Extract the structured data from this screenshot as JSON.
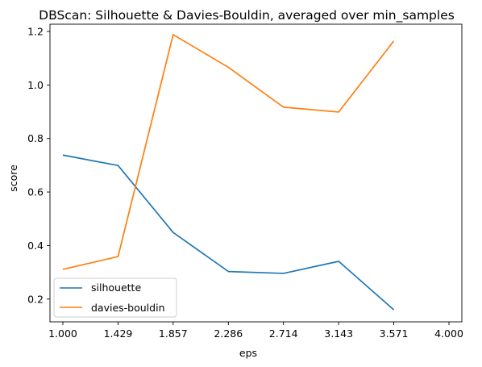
{
  "chart_data": {
    "type": "line",
    "title": "DBScan: Silhouette & Davies-Bouldin, averaged over min_samples",
    "xlabel": "eps",
    "ylabel": "score",
    "x": [
      1.0,
      1.429,
      1.857,
      2.286,
      2.714,
      3.143,
      3.571
    ],
    "xticks": [
      1.0,
      1.429,
      1.857,
      2.286,
      2.714,
      3.143,
      3.571,
      4.0
    ],
    "xtick_labels": [
      "1.000",
      "1.429",
      "1.857",
      "2.286",
      "2.714",
      "3.143",
      "3.571",
      "4.000"
    ],
    "yticks": [
      0.2,
      0.4,
      0.6,
      0.8,
      1.0,
      1.2
    ],
    "ytick_labels": [
      "0.2",
      "0.4",
      "0.6",
      "0.8",
      "1.0",
      "1.2"
    ],
    "xlim": [
      0.9,
      4.1
    ],
    "ylim": [
      0.115,
      1.227
    ],
    "grid": false,
    "legend_position": "lower-left",
    "series": [
      {
        "name": "silhouette",
        "color": "#1f77b4",
        "values": [
          0.738,
          0.699,
          0.449,
          0.303,
          0.296,
          0.341,
          0.16
        ]
      },
      {
        "name": "davies-bouldin",
        "color": "#ff7f0e",
        "values": [
          0.311,
          0.359,
          1.188,
          1.066,
          0.917,
          0.899,
          1.164
        ]
      }
    ]
  }
}
